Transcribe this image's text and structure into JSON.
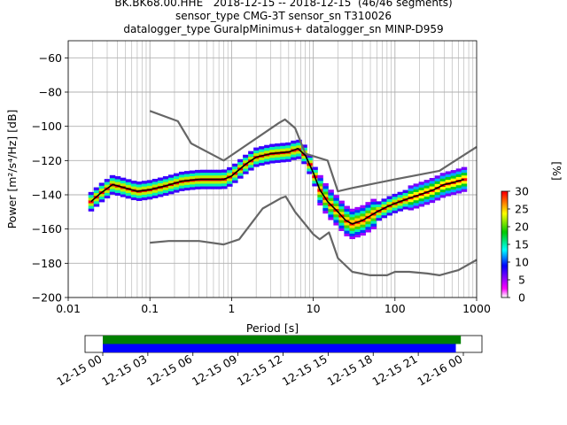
{
  "title_lines": [
    "BK.BK68.00.HHE   2018-12-15 -- 2018-12-15  (46/46 segments)",
    "sensor_type CMG-3T sensor_sn T310026",
    "datalogger_type GuralpMinimus+ datalogger_sn MINP-D959"
  ],
  "chart_data": [
    {
      "type": "line",
      "subtype": "ppsd",
      "xlabel": "Period [s]",
      "ylabel": "Power [m²/s⁴/Hz] [dB]",
      "xscale": "log",
      "xlim": [
        0.01,
        1000
      ],
      "ylim": [
        -200,
        -50
      ],
      "xticks": [
        0.01,
        0.1,
        1,
        10,
        100,
        1000
      ],
      "xtick_labels": [
        "0.01",
        "0.1",
        "1",
        "10",
        "100",
        "1000"
      ],
      "yticks": [
        -200,
        -180,
        -160,
        -140,
        -120,
        -100,
        -80,
        -60
      ],
      "grid": true,
      "series": [
        {
          "color": "#666666",
          "points": [
            [
              0.1,
              -91
            ],
            [
              0.22,
              -97
            ],
            [
              0.32,
              -110
            ],
            [
              0.8,
              -120
            ],
            [
              3.8,
              -98
            ],
            [
              4.5,
              -96
            ],
            [
              6,
              -101
            ],
            [
              8,
              -116
            ],
            [
              15,
              -120
            ],
            [
              20,
              -138
            ],
            [
              30,
              -136
            ],
            [
              100,
              -131
            ],
            [
              350,
              -126
            ],
            [
              1000,
              -112
            ]
          ]
        },
        {
          "color": "#666666",
          "points": [
            [
              0.1,
              -168
            ],
            [
              0.17,
              -167
            ],
            [
              0.4,
              -167
            ],
            [
              0.8,
              -169
            ],
            [
              1.24,
              -166
            ],
            [
              2.4,
              -148
            ],
            [
              4,
              -142
            ],
            [
              4.6,
              -141
            ],
            [
              6,
              -150
            ],
            [
              10,
              -163
            ],
            [
              12,
              -166
            ],
            [
              15.6,
              -162
            ],
            [
              20,
              -177
            ],
            [
              30,
              -185
            ],
            [
              50,
              -187
            ],
            [
              80,
              -187
            ],
            [
              100,
              -185
            ],
            [
              150,
              -185
            ],
            [
              250,
              -186
            ],
            [
              350,
              -187
            ],
            [
              600,
              -184
            ],
            [
              1000,
              -178
            ]
          ]
        },
        {
          "color": "#000000",
          "points": [
            [
              0.019,
              -144
            ],
            [
              0.025,
              -139
            ],
            [
              0.035,
              -134
            ],
            [
              0.05,
              -136
            ],
            [
              0.07,
              -138
            ],
            [
              0.1,
              -137
            ],
            [
              0.15,
              -135
            ],
            [
              0.25,
              -132
            ],
            [
              0.4,
              -131
            ],
            [
              0.6,
              -131
            ],
            [
              0.8,
              -131
            ],
            [
              1,
              -129
            ],
            [
              1.5,
              -122
            ],
            [
              2,
              -118
            ],
            [
              3,
              -116
            ],
            [
              5,
              -115
            ],
            [
              6.5,
              -113
            ],
            [
              8,
              -117
            ],
            [
              10,
              -127
            ],
            [
              12,
              -137
            ],
            [
              15,
              -144
            ],
            [
              20,
              -150
            ],
            [
              25,
              -155
            ],
            [
              30,
              -157
            ],
            [
              40,
              -155
            ],
            [
              60,
              -150
            ],
            [
              80,
              -147
            ],
            [
              100,
              -145
            ],
            [
              150,
              -142
            ],
            [
              200,
              -140
            ],
            [
              300,
              -137
            ],
            [
              400,
              -134
            ],
            [
              500,
              -133
            ],
            [
              700,
              -131
            ]
          ]
        }
      ],
      "colorbar": {
        "label": "[%]",
        "range": [
          0,
          30
        ],
        "ticks": [
          0,
          5,
          10,
          15,
          20,
          25,
          30
        ]
      }
    },
    {
      "type": "timeline",
      "xlim": [
        "2018-12-15 00:00",
        "2018-12-16 00:00"
      ],
      "tick_labels": [
        "12-15 00",
        "12-15 03",
        "12-15 06",
        "12-15 09",
        "12-15 12",
        "12-15 15",
        "12-15 18",
        "12-15 21",
        "12-16 00"
      ],
      "bars": [
        {
          "color": "#008000",
          "start": "2018-12-15 00:00",
          "end": "2018-12-15 23:50"
        },
        {
          "color": "#0000ff",
          "start": "2018-12-15 00:00",
          "end": "2018-12-15 23:30"
        }
      ]
    }
  ]
}
